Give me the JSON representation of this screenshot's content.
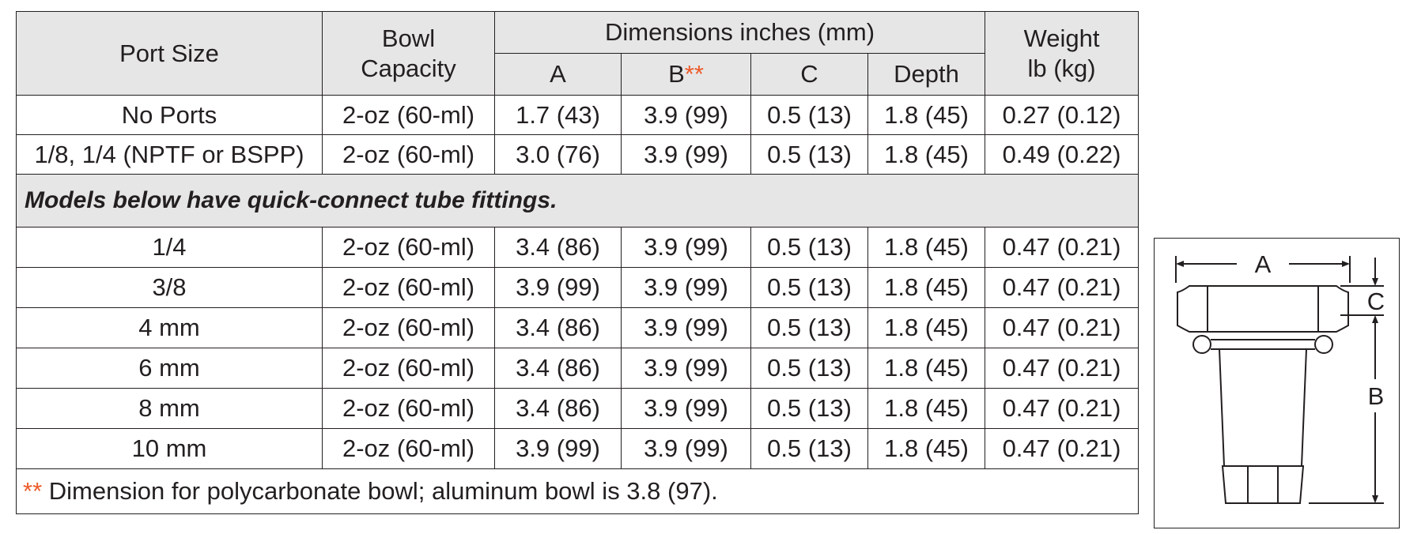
{
  "table": {
    "header": {
      "port_size": "Port Size",
      "bowl_capacity": "Bowl Capacity",
      "dimensions_bold": "Dimensions",
      "dimensions_units": " inches (mm)",
      "col_a": "A",
      "col_b": "B",
      "col_b_marker": "**",
      "col_c": "C",
      "col_depth": "Depth",
      "weight_bold": "Weight",
      "weight_units": "lb (kg)"
    },
    "rows_top": [
      {
        "port": "No Ports",
        "capacity": "2-oz (60-ml)",
        "a": "1.7 (43)",
        "b": "3.9 (99)",
        "c": "0.5 (13)",
        "depth": "1.8 (45)",
        "weight": "0.27 (0.12)"
      },
      {
        "port": "1/8, 1/4 (NPTF or BSPP)",
        "capacity": "2-oz (60-ml)",
        "a": "3.0 (76)",
        "b": "3.9 (99)",
        "c": "0.5 (13)",
        "depth": "1.8 (45)",
        "weight": "0.49 (0.22)"
      }
    ],
    "note": "Models below have quick-connect tube fittings.",
    "rows_bottom": [
      {
        "port": "1/4",
        "capacity": "2-oz (60-ml)",
        "a": "3.4 (86)",
        "b": "3.9 (99)",
        "c": "0.5 (13)",
        "depth": "1.8 (45)",
        "weight": "0.47 (0.21)"
      },
      {
        "port": "3/8",
        "capacity": "2-oz (60-ml)",
        "a": "3.9 (99)",
        "b": "3.9 (99)",
        "c": "0.5 (13)",
        "depth": "1.8 (45)",
        "weight": "0.47 (0.21)"
      },
      {
        "port": "4 mm",
        "capacity": "2-oz (60-ml)",
        "a": "3.4 (86)",
        "b": "3.9 (99)",
        "c": "0.5 (13)",
        "depth": "1.8 (45)",
        "weight": "0.47 (0.21)"
      },
      {
        "port": "6 mm",
        "capacity": "2-oz (60-ml)",
        "a": "3.4 (86)",
        "b": "3.9 (99)",
        "c": "0.5 (13)",
        "depth": "1.8 (45)",
        "weight": "0.47 (0.21)"
      },
      {
        "port": "8 mm",
        "capacity": "2-oz (60-ml)",
        "a": "3.4 (86)",
        "b": "3.9 (99)",
        "c": "0.5 (13)",
        "depth": "1.8 (45)",
        "weight": "0.47 (0.21)"
      },
      {
        "port": "10 mm",
        "capacity": "2-oz (60-ml)",
        "a": "3.9 (99)",
        "b": "3.9 (99)",
        "c": "0.5 (13)",
        "depth": "1.8 (45)",
        "weight": "0.47 (0.21)"
      }
    ],
    "footnote_marker": "**",
    "footnote": " Dimension for polycarbonate bowl; aluminum bowl is 3.8 (97)."
  },
  "diagram": {
    "label_a": "A",
    "label_b": "B",
    "label_c": "C"
  },
  "colors": {
    "header_bg": "#e6e6e7",
    "accent": "#ec5a29",
    "text": "#231f20"
  }
}
